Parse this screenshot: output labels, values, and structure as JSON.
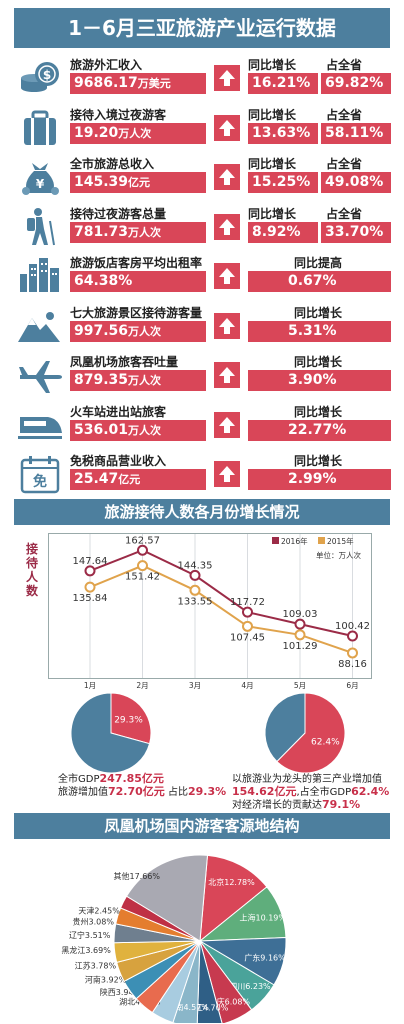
{
  "title": "1－6月三亚旅游产业运行数据",
  "stats": [
    {
      "label": "旅游外汇收入",
      "value": "9686.17",
      "unit": "万美元",
      "icon": "coins-icon",
      "growth_label": "同比增长",
      "growth": "16.21%",
      "share_label": "占全省",
      "share": "69.82%"
    },
    {
      "label": "接待入境过夜游客",
      "value": "19.20",
      "unit": "万人次",
      "icon": "suitcase-icon",
      "growth_label": "同比增长",
      "growth": "13.63%",
      "share_label": "占全省",
      "share": "58.11%"
    },
    {
      "label": "全市旅游总收入",
      "value": "145.39",
      "unit": "亿元",
      "icon": "money-bag-icon",
      "growth_label": "同比增长",
      "growth": "15.25%",
      "share_label": "占全省",
      "share": "49.08%"
    },
    {
      "label": "接待过夜游客总量",
      "value": "781.73",
      "unit": "万人次",
      "icon": "hiker-icon",
      "growth_label": "同比增长",
      "growth": "8.92%",
      "share_label": "占全省",
      "share": "33.70%"
    },
    {
      "label": "旅游饭店客房平均出租率",
      "value": "64.38%",
      "unit": "",
      "icon": "buildings-icon",
      "growth_label": "同比提高",
      "growth": "0.67%"
    },
    {
      "label": "七大旅游景区接待游客量",
      "value": "997.56",
      "unit": "万人次",
      "icon": "mountain-icon",
      "growth_label": "同比增长",
      "growth": "5.31%"
    },
    {
      "label": "凤凰机场旅客吞吐量",
      "value": "879.35",
      "unit": "万人次",
      "icon": "airplane-icon",
      "growth_label": "同比增长",
      "growth": "3.90%"
    },
    {
      "label": "火车站进出站旅客",
      "value": "536.01",
      "unit": "万人次",
      "icon": "train-icon",
      "growth_label": "同比增长",
      "growth": "22.77%"
    },
    {
      "label": "免税商品营业收入",
      "value": "25.47",
      "unit": "亿元",
      "icon": "calendar-icon",
      "icon_text": "免",
      "growth_label": "同比增长",
      "growth": "2.99%"
    }
  ],
  "line_section": {
    "title": "旅游接待人数各月份增长情况"
  },
  "chart_data": [
    {
      "type": "line",
      "ylabel": "接待人数",
      "unit": "单位：万人次",
      "categories": [
        "1月",
        "2月",
        "3月",
        "4月",
        "5月",
        "6月"
      ],
      "series": [
        {
          "name": "2016年",
          "color": "#9b2b47",
          "values": [
            147.64,
            162.57,
            144.35,
            117.72,
            109.03,
            100.42
          ]
        },
        {
          "name": "2015年",
          "color": "#e0a34c",
          "values": [
            135.84,
            151.42,
            133.55,
            107.45,
            101.29,
            88.16
          ]
        }
      ],
      "legend": "top-right",
      "ylim": [
        70,
        170
      ]
    },
    {
      "type": "pie",
      "slices": [
        {
          "label": "29.3%",
          "value": 29.3,
          "color": "#d94658"
        },
        {
          "label": "",
          "value": 70.7,
          "color": "#4d7f9e"
        }
      ],
      "caption": [
        {
          "pre": "全市GDP",
          "num": "247.85亿元",
          "post": ""
        },
        {
          "pre": "旅游增加值",
          "num": "72.70亿元",
          "post": " 占比",
          "num2": "29.3%"
        }
      ]
    },
    {
      "type": "pie",
      "slices": [
        {
          "label": "62.4%",
          "value": 62.4,
          "color": "#d94658"
        },
        {
          "label": "",
          "value": 37.6,
          "color": "#4d7f9e"
        }
      ],
      "caption": [
        {
          "pre": "以旅游业为龙头的第三产业增加值",
          "num": "",
          "post": ""
        },
        {
          "pre": "",
          "num": "154.62亿元",
          "post": ",占全市GDP",
          "num2": "62.4%"
        },
        {
          "pre": "对经济增长的贡献达",
          "num": "79.1%",
          "post": ""
        }
      ]
    },
    {
      "type": "pie",
      "title": "凤凰机场国内游客客源地结构",
      "slices": [
        {
          "label": "北京12.78%",
          "value": 12.78,
          "color": "#d94658"
        },
        {
          "label": "上海10.19%",
          "value": 10.19,
          "color": "#5fae7c"
        },
        {
          "label": "广东9.16%",
          "value": 9.16,
          "color": "#3e6f96"
        },
        {
          "label": "四川6.23%",
          "value": 6.23,
          "color": "#4aa39a"
        },
        {
          "label": "重庆6.08%",
          "value": 6.08,
          "color": "#c73a4f"
        },
        {
          "label": "浙江4.70%",
          "value": 4.7,
          "color": "#2f5f86"
        },
        {
          "label": "湖南4.57%",
          "value": 4.57,
          "color": "#8ab6c9"
        },
        {
          "label": "湖北4.25%",
          "value": 4.25,
          "color": "#a8cce0"
        },
        {
          "label": "陕西3.94%",
          "value": 3.94,
          "color": "#e86b4e"
        },
        {
          "label": "河南3.92%",
          "value": 3.92,
          "color": "#3c8fb5"
        },
        {
          "label": "江苏3.78%",
          "value": 3.78,
          "color": "#d7a23e"
        },
        {
          "label": "黑龙江3.69%",
          "value": 3.69,
          "color": "#e0b23e"
        },
        {
          "label": "辽宁3.51%",
          "value": 3.51,
          "color": "#6f7f8f"
        },
        {
          "label": "贵州3.08%",
          "value": 3.08,
          "color": "#e47d2f"
        },
        {
          "label": "天津2.45%",
          "value": 2.45,
          "color": "#bf3045"
        },
        {
          "label": "其他17.66%",
          "value": 17.66,
          "color": "#a9a9b2"
        }
      ]
    }
  ]
}
